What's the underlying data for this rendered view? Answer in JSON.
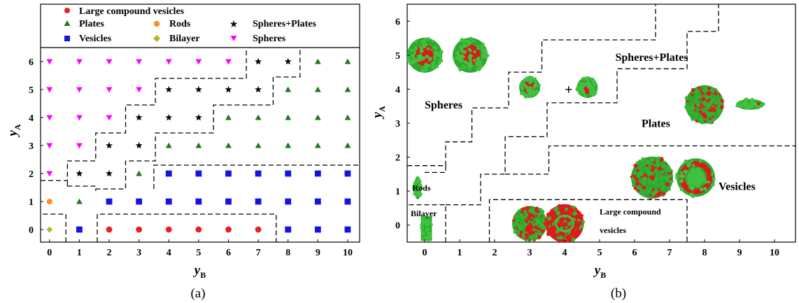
{
  "figure": {
    "panel_a_label": "(a)",
    "panel_b_label": "(b)"
  },
  "chart_data": [
    {
      "type": "scatter",
      "panel": "(a)",
      "xlabel_main": "y",
      "xlabel_sub": "B",
      "ylabel_main": "y",
      "ylabel_sub": "A",
      "x_ticks": [
        "0",
        "1",
        "2",
        "3",
        "4",
        "5",
        "6",
        "7",
        "8",
        "9",
        "10"
      ],
      "y_ticks": [
        "0",
        "1",
        "2",
        "3",
        "4",
        "5",
        "6"
      ],
      "xlim": [
        -0.3,
        10.4
      ],
      "ylim": [
        -0.45,
        6.5
      ],
      "legend": {
        "placement": "top",
        "entries": [
          {
            "label": "Large compound vesicles",
            "series": "Large compound vesicles"
          },
          {
            "label": "Plates",
            "series": "Plates"
          },
          {
            "label": "Rods",
            "series": "Rods"
          },
          {
            "label": "Spheres+Plates",
            "series": "Spheres+Plates"
          },
          {
            "label": "Vesicles",
            "series": "Vesicles"
          },
          {
            "label": "Bilayer",
            "series": "Bilayer"
          },
          {
            "label": "Spheres",
            "series": "Spheres"
          }
        ]
      },
      "series": [
        {
          "name": "Large compound vesicles",
          "marker": "circle",
          "color": "#ee1c25",
          "points": [
            [
              2,
              0
            ],
            [
              3,
              0
            ],
            [
              4,
              0
            ],
            [
              5,
              0
            ],
            [
              6,
              0
            ],
            [
              7,
              0
            ]
          ]
        },
        {
          "name": "Plates",
          "marker": "triangle-up",
          "color": "#1f7a1f",
          "points": [
            [
              1,
              1
            ],
            [
              3,
              2
            ],
            [
              4,
              3
            ],
            [
              5,
              3
            ],
            [
              6,
              3
            ],
            [
              7,
              3
            ],
            [
              8,
              3
            ],
            [
              9,
              3
            ],
            [
              10,
              3
            ],
            [
              6,
              4
            ],
            [
              7,
              4
            ],
            [
              8,
              4
            ],
            [
              9,
              4
            ],
            [
              10,
              4
            ],
            [
              8,
              5
            ],
            [
              9,
              5
            ],
            [
              10,
              5
            ],
            [
              9,
              6
            ],
            [
              10,
              6
            ]
          ]
        },
        {
          "name": "Rods",
          "marker": "hexagon",
          "color": "#f7901e",
          "points": [
            [
              0,
              1
            ]
          ]
        },
        {
          "name": "Spheres+Plates",
          "marker": "star",
          "color": "#000000",
          "points": [
            [
              1,
              2
            ],
            [
              2,
              2
            ],
            [
              2,
              3
            ],
            [
              3,
              3
            ],
            [
              3,
              4
            ],
            [
              4,
              4
            ],
            [
              5,
              4
            ],
            [
              4,
              5
            ],
            [
              5,
              5
            ],
            [
              6,
              5
            ],
            [
              7,
              5
            ],
            [
              7,
              6
            ],
            [
              8,
              6
            ]
          ]
        },
        {
          "name": "Vesicles",
          "marker": "square",
          "color": "#1414e0",
          "points": [
            [
              1,
              0
            ],
            [
              8,
              0
            ],
            [
              9,
              0
            ],
            [
              10,
              0
            ],
            [
              2,
              1
            ],
            [
              3,
              1
            ],
            [
              4,
              1
            ],
            [
              5,
              1
            ],
            [
              6,
              1
            ],
            [
              7,
              1
            ],
            [
              8,
              1
            ],
            [
              9,
              1
            ],
            [
              10,
              1
            ],
            [
              4,
              2
            ],
            [
              5,
              2
            ],
            [
              6,
              2
            ],
            [
              7,
              2
            ],
            [
              8,
              2
            ],
            [
              9,
              2
            ],
            [
              10,
              2
            ]
          ]
        },
        {
          "name": "Bilayer",
          "marker": "diamond",
          "color": "#b5b522",
          "points": [
            [
              0,
              0
            ]
          ]
        },
        {
          "name": "Spheres",
          "marker": "triangle-down",
          "color": "#ff00ff",
          "points": [
            [
              0,
              2
            ],
            [
              0,
              3
            ],
            [
              1,
              3
            ],
            [
              0,
              4
            ],
            [
              1,
              4
            ],
            [
              2,
              4
            ],
            [
              0,
              5
            ],
            [
              1,
              5
            ],
            [
              2,
              5
            ],
            [
              3,
              5
            ],
            [
              0,
              6
            ],
            [
              1,
              6
            ],
            [
              2,
              6
            ],
            [
              3,
              6
            ],
            [
              4,
              6
            ],
            [
              5,
              6
            ],
            [
              6,
              6
            ]
          ]
        }
      ],
      "boundaries": [
        [
          [
            0.55,
            -0.45
          ],
          [
            0.55,
            0.55
          ],
          [
            -0.3,
            0.55
          ]
        ],
        [
          [
            1.6,
            -0.45
          ],
          [
            1.6,
            0.55
          ],
          [
            7.6,
            0.55
          ],
          [
            7.6,
            -0.45
          ]
        ],
        [
          [
            -0.3,
            1.75
          ],
          [
            0.6,
            1.75
          ],
          [
            0.6,
            2.45
          ],
          [
            1.55,
            2.45
          ],
          [
            1.55,
            3.45
          ],
          [
            2.55,
            3.45
          ],
          [
            2.55,
            4.45
          ],
          [
            3.55,
            4.45
          ],
          [
            3.55,
            5.4
          ],
          [
            6.6,
            5.4
          ],
          [
            6.6,
            6.5
          ]
        ],
        [
          [
            0.6,
            1.55
          ],
          [
            0.6,
            1.75
          ]
        ],
        [
          [
            0.6,
            1.55
          ],
          [
            1.55,
            1.55
          ],
          [
            1.55,
            1.45
          ],
          [
            2.55,
            1.45
          ],
          [
            2.55,
            2.45
          ],
          [
            3.55,
            2.45
          ],
          [
            3.55,
            3.45
          ],
          [
            5.5,
            3.45
          ],
          [
            5.5,
            4.45
          ],
          [
            7.5,
            4.45
          ],
          [
            7.5,
            5.45
          ],
          [
            8.4,
            5.45
          ],
          [
            8.4,
            6.5
          ]
        ],
        [
          [
            1.55,
            1.45
          ],
          [
            1.55,
            1.45
          ]
        ],
        [
          [
            1.55,
            1.45
          ],
          [
            1.55,
            1.38
          ]
        ],
        [
          [
            -0.3,
            1.75
          ],
          [
            -0.3,
            1.75
          ]
        ],
        [
          [
            1.55,
            1.38
          ],
          [
            1.55,
            1.38
          ]
        ],
        [
          [
            3.5,
            1.45
          ],
          [
            3.5,
            2.3
          ],
          [
            10.4,
            2.3
          ]
        ]
      ]
    },
    {
      "type": "scatter",
      "panel": "(b)",
      "xlabel_main": "y",
      "xlabel_sub": "B",
      "ylabel_main": "y",
      "ylabel_sub": "A",
      "x_ticks": [
        "0",
        "1",
        "2",
        "3",
        "4",
        "5",
        "6",
        "7",
        "8",
        "9",
        "10"
      ],
      "y_ticks": [
        "0",
        "1",
        "2",
        "3",
        "4",
        "5",
        "6"
      ],
      "xlim": [
        -0.5,
        10.6
      ],
      "ylim": [
        -0.5,
        6.5
      ],
      "region_labels": [
        {
          "text": "Spheres",
          "x": 0.0,
          "y": 3.55
        },
        {
          "text": "Spheres+Plates",
          "x": 5.45,
          "y": 4.95
        },
        {
          "text": "Plates",
          "x": 6.2,
          "y": 3.0
        },
        {
          "text": "Vesicles",
          "x": 8.4,
          "y": 1.15
        },
        {
          "text": "Rods",
          "x": -0.35,
          "y": 1.1
        },
        {
          "text": "Bilayer",
          "x": -0.4,
          "y": 0.35
        },
        {
          "text": "Large compound",
          "x": 5.0,
          "y": 0.4
        },
        {
          "text": "vesicles",
          "x": 5.0,
          "y": -0.15
        },
        {
          "text": "+",
          "x": 4.0,
          "y": 4.0
        }
      ],
      "micelle_images": [
        {
          "shape": "sphere",
          "x": 0.0,
          "y": 5.0,
          "r": 0.5
        },
        {
          "shape": "sphere",
          "x": 1.3,
          "y": 5.0,
          "r": 0.5
        },
        {
          "shape": "sphere",
          "x": 3.0,
          "y": 4.05,
          "r": 0.3
        },
        {
          "shape": "sphere",
          "x": 4.65,
          "y": 4.05,
          "r": 0.3
        },
        {
          "shape": "plate",
          "x": 8.0,
          "y": 3.55,
          "r": 0.55
        },
        {
          "shape": "plate-side",
          "x": 9.3,
          "y": 3.55,
          "r": 0.4
        },
        {
          "shape": "vesicle",
          "x": 6.5,
          "y": 1.4,
          "r": 0.6
        },
        {
          "shape": "ring",
          "x": 7.75,
          "y": 1.4,
          "r": 0.55
        },
        {
          "shape": "rod",
          "x": -0.2,
          "y": 1.1,
          "r": 0.3
        },
        {
          "shape": "bilayer",
          "x": 0.05,
          "y": -0.1,
          "r": 0.35
        },
        {
          "shape": "lcv",
          "x": 3.0,
          "y": 0.05,
          "r": 0.5
        },
        {
          "shape": "lcv-red",
          "x": 4.0,
          "y": 0.05,
          "r": 0.55
        }
      ],
      "boundaries": [
        [
          [
            0.6,
            -0.5
          ],
          [
            0.6,
            0.6
          ],
          [
            -0.5,
            0.6
          ]
        ],
        [
          [
            1.85,
            -0.5
          ],
          [
            1.85,
            0.75
          ],
          [
            7.5,
            0.75
          ],
          [
            7.5,
            -0.5
          ]
        ],
        [
          [
            -0.5,
            1.75
          ],
          [
            0.6,
            1.75
          ],
          [
            0.6,
            2.45
          ],
          [
            1.35,
            2.45
          ],
          [
            1.35,
            3.45
          ],
          [
            2.4,
            3.45
          ],
          [
            2.4,
            4.5
          ],
          [
            3.35,
            4.5
          ],
          [
            3.35,
            5.45
          ],
          [
            6.6,
            5.45
          ],
          [
            6.6,
            6.5
          ]
        ],
        [
          [
            0.6,
            1.75
          ],
          [
            0.6,
            1.55
          ],
          [
            0.0,
            1.55
          ]
        ],
        [
          [
            0.6,
            0.6
          ],
          [
            1.6,
            0.6
          ],
          [
            1.6,
            1.5
          ],
          [
            2.3,
            1.5
          ],
          [
            2.3,
            2.6
          ],
          [
            3.5,
            2.6
          ],
          [
            3.5,
            3.6
          ],
          [
            5.5,
            3.6
          ],
          [
            5.5,
            4.6
          ],
          [
            7.5,
            4.6
          ],
          [
            7.5,
            5.7
          ],
          [
            8.4,
            5.7
          ],
          [
            8.4,
            6.5
          ]
        ],
        [
          [
            2.3,
            1.5
          ],
          [
            3.55,
            1.5
          ],
          [
            3.55,
            2.33
          ],
          [
            10.6,
            2.33
          ]
        ],
        [
          [
            -0.5,
            1.75
          ],
          [
            -0.5,
            1.75
          ]
        ]
      ]
    }
  ]
}
